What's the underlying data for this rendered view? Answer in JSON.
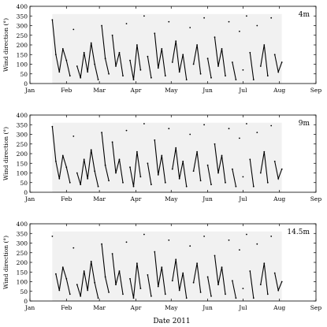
{
  "figure": {
    "xlabel": "Date 2011"
  },
  "chart_data": [
    {
      "type": "line",
      "panel_label": "4m",
      "ylabel": "Wind direction (°)",
      "ylim": [
        0,
        400
      ],
      "yticks": [
        "0",
        "50",
        "100",
        "150",
        "200",
        "250",
        "300",
        "350",
        "400"
      ],
      "xlim": [
        "2011-01-01",
        "2011-09-01"
      ],
      "xticks": [
        "Jan",
        "Feb",
        "Mar",
        "Apr",
        "May",
        "Jun",
        "Jul",
        "Aug",
        "Sep"
      ],
      "data_range": [
        "2011-01-20",
        "2011-08-03"
      ],
      "grid": false,
      "series": [
        {
          "x": [
            "2011-01-20",
            "2011-01-23",
            "2011-01-26",
            "2011-01-29",
            "2011-02-01",
            "2011-02-04",
            "2011-02-07",
            "2011-02-10",
            "2011-02-13",
            "2011-02-16",
            "2011-02-19",
            "2011-02-22",
            "2011-02-25",
            "2011-02-28",
            "2011-03-03",
            "2011-03-06",
            "2011-03-09",
            "2011-03-12",
            "2011-03-15",
            "2011-03-18",
            "2011-03-21",
            "2011-03-24",
            "2011-03-27",
            "2011-03-30",
            "2011-04-02",
            "2011-04-05",
            "2011-04-08",
            "2011-04-11",
            "2011-04-14",
            "2011-04-17",
            "2011-04-20",
            "2011-04-23",
            "2011-04-26",
            "2011-04-29",
            "2011-05-02",
            "2011-05-05",
            "2011-05-08",
            "2011-05-11",
            "2011-05-14",
            "2011-05-17",
            "2011-05-20",
            "2011-05-23",
            "2011-05-26",
            "2011-05-29",
            "2011-06-01",
            "2011-06-04",
            "2011-06-07",
            "2011-06-10",
            "2011-06-13",
            "2011-06-16",
            "2011-06-19",
            "2011-06-22",
            "2011-06-25",
            "2011-06-28",
            "2011-07-01",
            "2011-07-04",
            "2011-07-07",
            "2011-07-10",
            "2011-07-13",
            "2011-07-16",
            "2011-07-19",
            "2011-07-22",
            "2011-07-25",
            "2011-07-28",
            "2011-07-31",
            "2011-08-03"
          ],
          "y": [
            330,
            150,
            60,
            180,
            120,
            40,
            280,
            90,
            30,
            160,
            60,
            210,
            100,
            20,
            300,
            130,
            50,
            250,
            90,
            160,
            40,
            310,
            120,
            20,
            200,
            70,
            350,
            140,
            30,
            260,
            80,
            180,
            40,
            320,
            110,
            220,
            60,
            150,
            20,
            290,
            100,
            200,
            50,
            340,
            130,
            30,
            240,
            90,
            180,
            40,
            320,
            110,
            20,
            270,
            70,
            350,
            160,
            20,
            300,
            90,
            200,
            40,
            340,
            150,
            60,
            110
          ]
        }
      ]
    },
    {
      "type": "line",
      "panel_label": "9m",
      "ylabel": "Wind direction (°)",
      "ylim": [
        0,
        400
      ],
      "yticks": [
        "0",
        "50",
        "100",
        "150",
        "200",
        "250",
        "300",
        "350",
        "400"
      ],
      "xlim": [
        "2011-01-01",
        "2011-09-01"
      ],
      "xticks": [
        "Jan",
        "Feb",
        "Mar",
        "Apr",
        "May",
        "Jun",
        "Jul",
        "Aug",
        "Sep"
      ],
      "data_range": [
        "2011-01-20",
        "2011-08-03"
      ],
      "grid": false,
      "series": [
        {
          "x": [
            "2011-01-20",
            "2011-01-23",
            "2011-01-26",
            "2011-01-29",
            "2011-02-01",
            "2011-02-04",
            "2011-02-07",
            "2011-02-10",
            "2011-02-13",
            "2011-02-16",
            "2011-02-19",
            "2011-02-22",
            "2011-02-25",
            "2011-02-28",
            "2011-03-03",
            "2011-03-06",
            "2011-03-09",
            "2011-03-12",
            "2011-03-15",
            "2011-03-18",
            "2011-03-21",
            "2011-03-24",
            "2011-03-27",
            "2011-03-30",
            "2011-04-02",
            "2011-04-05",
            "2011-04-08",
            "2011-04-11",
            "2011-04-14",
            "2011-04-17",
            "2011-04-20",
            "2011-04-23",
            "2011-04-26",
            "2011-04-29",
            "2011-05-02",
            "2011-05-05",
            "2011-05-08",
            "2011-05-11",
            "2011-05-14",
            "2011-05-17",
            "2011-05-20",
            "2011-05-23",
            "2011-05-26",
            "2011-05-29",
            "2011-06-01",
            "2011-06-04",
            "2011-06-07",
            "2011-06-10",
            "2011-06-13",
            "2011-06-16",
            "2011-06-19",
            "2011-06-22",
            "2011-06-25",
            "2011-06-28",
            "2011-07-01",
            "2011-07-04",
            "2011-07-07",
            "2011-07-10",
            "2011-07-13",
            "2011-07-16",
            "2011-07-19",
            "2011-07-22",
            "2011-07-25",
            "2011-07-28",
            "2011-07-31",
            "2011-08-03"
          ],
          "y": [
            340,
            160,
            70,
            190,
            130,
            50,
            290,
            100,
            40,
            170,
            70,
            220,
            110,
            30,
            310,
            140,
            60,
            260,
            100,
            170,
            50,
            320,
            130,
            30,
            210,
            80,
            355,
            150,
            40,
            270,
            90,
            190,
            50,
            330,
            120,
            230,
            70,
            160,
            30,
            300,
            110,
            210,
            60,
            350,
            140,
            40,
            250,
            100,
            190,
            50,
            330,
            120,
            30,
            280,
            80,
            355,
            170,
            30,
            310,
            100,
            210,
            50,
            345,
            160,
            70,
            120
          ]
        }
      ]
    },
    {
      "type": "line",
      "panel_label": "14.5m",
      "ylabel": "Wind direction (°)",
      "ylim": [
        0,
        400
      ],
      "yticks": [
        "0",
        "50",
        "100",
        "150",
        "200",
        "250",
        "300",
        "350",
        "400"
      ],
      "xlim": [
        "2011-01-01",
        "2011-09-01"
      ],
      "xticks": [
        "Jan",
        "Feb",
        "Mar",
        "Apr",
        "May",
        "Jun",
        "Jul",
        "Aug",
        "Sep"
      ],
      "data_range": [
        "2011-01-20",
        "2011-08-03"
      ],
      "grid": false,
      "series": [
        {
          "x": [
            "2011-01-20",
            "2011-01-23",
            "2011-01-26",
            "2011-01-29",
            "2011-02-01",
            "2011-02-04",
            "2011-02-07",
            "2011-02-10",
            "2011-02-13",
            "2011-02-16",
            "2011-02-19",
            "2011-02-22",
            "2011-02-25",
            "2011-02-28",
            "2011-03-03",
            "2011-03-06",
            "2011-03-09",
            "2011-03-12",
            "2011-03-15",
            "2011-03-18",
            "2011-03-21",
            "2011-03-24",
            "2011-03-27",
            "2011-03-30",
            "2011-04-02",
            "2011-04-05",
            "2011-04-08",
            "2011-04-11",
            "2011-04-14",
            "2011-04-17",
            "2011-04-20",
            "2011-04-23",
            "2011-04-26",
            "2011-04-29",
            "2011-05-02",
            "2011-05-05",
            "2011-05-08",
            "2011-05-11",
            "2011-05-14",
            "2011-05-17",
            "2011-05-20",
            "2011-05-23",
            "2011-05-26",
            "2011-05-29",
            "2011-06-01",
            "2011-06-04",
            "2011-06-07",
            "2011-06-10",
            "2011-06-13",
            "2011-06-16",
            "2011-06-19",
            "2011-06-22",
            "2011-06-25",
            "2011-06-28",
            "2011-07-01",
            "2011-07-04",
            "2011-07-07",
            "2011-07-10",
            "2011-07-13",
            "2011-07-16",
            "2011-07-19",
            "2011-07-22",
            "2011-07-25",
            "2011-07-28",
            "2011-07-31",
            "2011-08-03"
          ],
          "y": [
            335,
            140,
            55,
            175,
            115,
            35,
            275,
            85,
            25,
            155,
            55,
            205,
            95,
            15,
            295,
            125,
            45,
            245,
            85,
            155,
            35,
            305,
            115,
            15,
            195,
            65,
            345,
            135,
            25,
            255,
            75,
            175,
            35,
            315,
            105,
            215,
            55,
            145,
            15,
            285,
            95,
            195,
            45,
            335,
            125,
            25,
            235,
            85,
            175,
            35,
            315,
            105,
            15,
            265,
            65,
            345,
            155,
            15,
            295,
            85,
            195,
            35,
            335,
            145,
            55,
            100
          ]
        }
      ]
    }
  ]
}
